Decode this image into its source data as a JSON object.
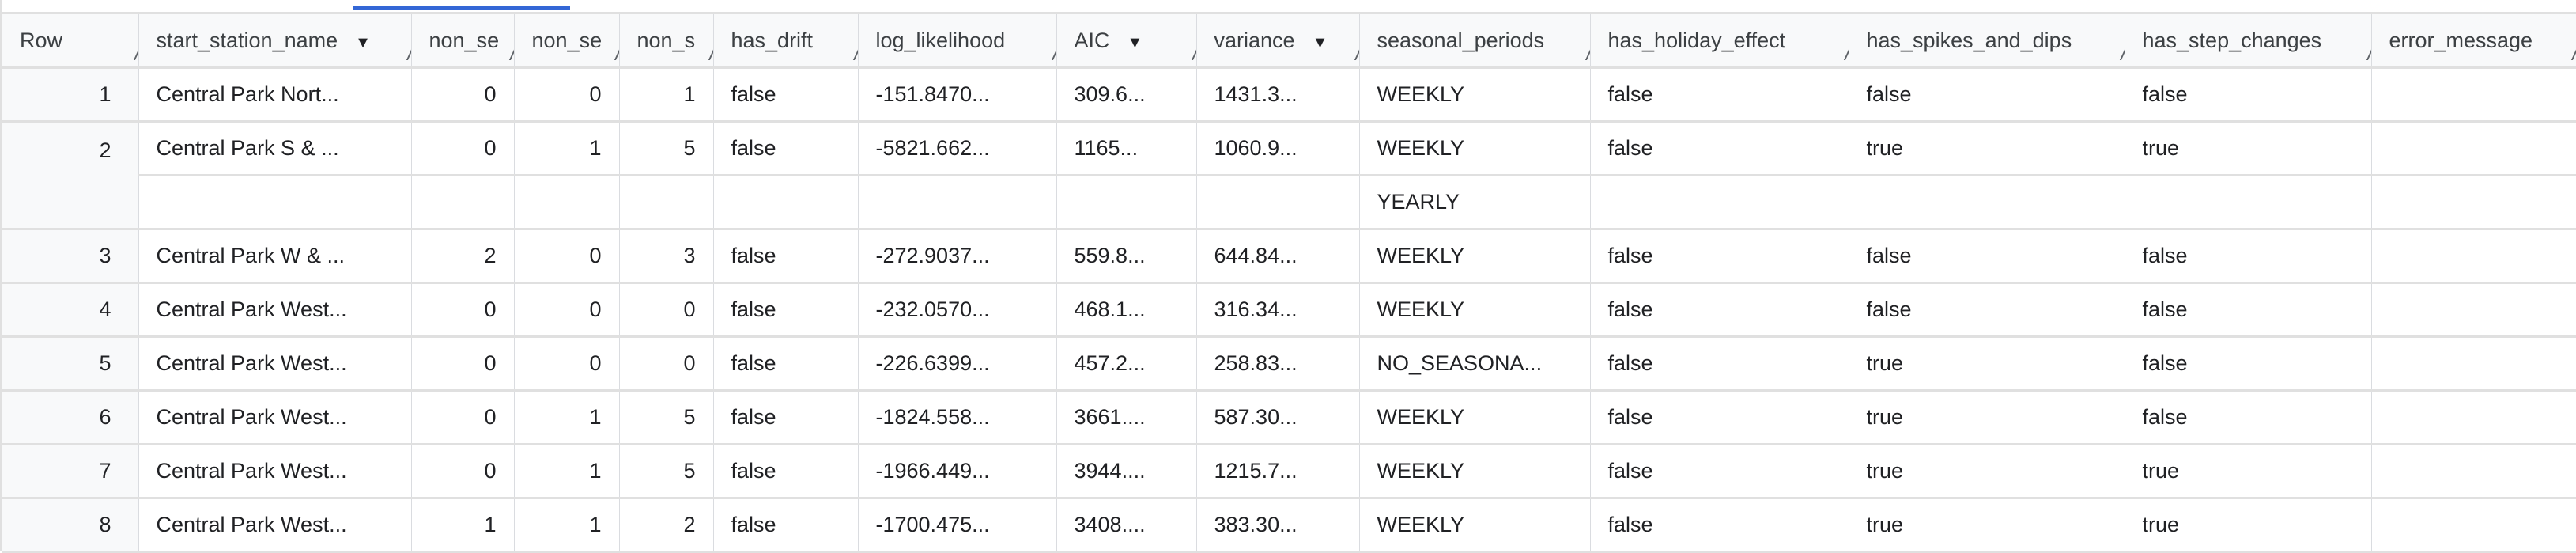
{
  "columns": [
    "Row",
    "start_station_name",
    "non_se",
    "non_se",
    "non_s",
    "has_drift",
    "log_likelihood",
    "AIC",
    "variance",
    "seasonal_periods",
    "has_holiday_effect",
    "has_spikes_and_dips",
    "has_step_changes",
    "error_message"
  ],
  "sort_indicators": {
    "AIC": "▼",
    "variance": "▼",
    "start_station_name": "▼"
  },
  "rows": [
    {
      "row": "1",
      "cells": [
        "Central Park Nort...",
        "0",
        "0",
        "1",
        "false",
        "-151.8470...",
        "309.6...",
        "1431.3...",
        "WEEKLY",
        "false",
        "false",
        "false",
        ""
      ]
    },
    {
      "row": "2",
      "cells": [
        "Central Park S & ...",
        "0",
        "1",
        "5",
        "false",
        "-5821.662...",
        "1165...",
        "1060.9...",
        "WEEKLY",
        "false",
        "true",
        "true",
        ""
      ],
      "extra_seasonal": "YEARLY"
    },
    {
      "row": "3",
      "cells": [
        "Central Park W & ...",
        "2",
        "0",
        "3",
        "false",
        "-272.9037...",
        "559.8...",
        "644.84...",
        "WEEKLY",
        "false",
        "false",
        "false",
        ""
      ]
    },
    {
      "row": "4",
      "cells": [
        "Central Park West...",
        "0",
        "0",
        "0",
        "false",
        "-232.0570...",
        "468.1...",
        "316.34...",
        "WEEKLY",
        "false",
        "false",
        "false",
        ""
      ]
    },
    {
      "row": "5",
      "cells": [
        "Central Park West...",
        "0",
        "0",
        "0",
        "false",
        "-226.6399...",
        "457.2...",
        "258.83...",
        "NO_SEASONA...",
        "false",
        "true",
        "false",
        ""
      ]
    },
    {
      "row": "6",
      "cells": [
        "Central Park West...",
        "0",
        "1",
        "5",
        "false",
        "-1824.558...",
        "3661....",
        "587.30...",
        "WEEKLY",
        "false",
        "true",
        "false",
        ""
      ]
    },
    {
      "row": "7",
      "cells": [
        "Central Park West...",
        "0",
        "1",
        "5",
        "false",
        "-1966.449...",
        "3944....",
        "1215.7...",
        "WEEKLY",
        "false",
        "true",
        "true",
        ""
      ]
    },
    {
      "row": "8",
      "cells": [
        "Central Park West...",
        "1",
        "1",
        "2",
        "false",
        "-1700.475...",
        "3408....",
        "383.30...",
        "WEEKLY",
        "false",
        "true",
        "true",
        ""
      ]
    }
  ],
  "colors": {
    "accent": "#3367d6",
    "header_bg": "#f8f9fa",
    "grid": "#e0e0e0"
  }
}
